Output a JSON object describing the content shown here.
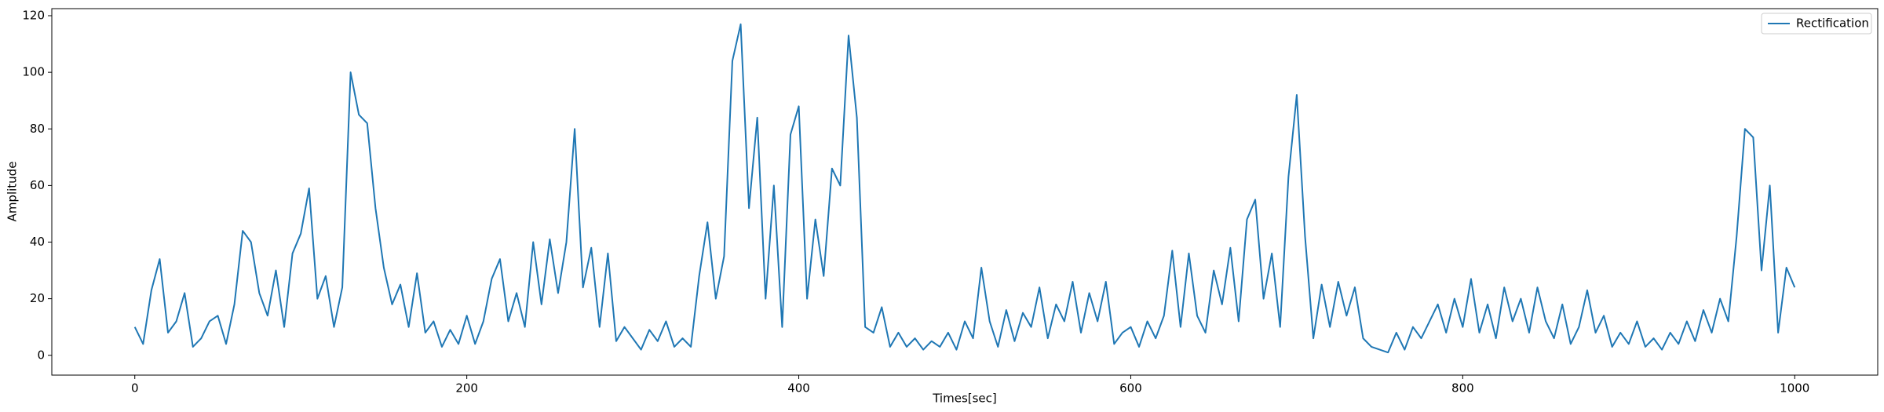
{
  "chart_data": {
    "type": "line",
    "xlabel": "Times[sec]",
    "ylabel": "Amplitude",
    "x": [
      0,
      5,
      10,
      15,
      20,
      25,
      30,
      35,
      40,
      45,
      50,
      55,
      60,
      65,
      70,
      75,
      80,
      85,
      90,
      95,
      100,
      105,
      110,
      115,
      120,
      125,
      130,
      135,
      140,
      145,
      150,
      155,
      160,
      165,
      170,
      175,
      180,
      185,
      190,
      195,
      200,
      205,
      210,
      215,
      220,
      225,
      230,
      235,
      240,
      245,
      250,
      255,
      260,
      265,
      270,
      275,
      280,
      285,
      290,
      295,
      300,
      305,
      310,
      315,
      320,
      325,
      330,
      335,
      340,
      345,
      350,
      355,
      360,
      365,
      370,
      375,
      380,
      385,
      390,
      395,
      400,
      405,
      410,
      415,
      420,
      425,
      430,
      435,
      440,
      445,
      450,
      455,
      460,
      465,
      470,
      475,
      480,
      485,
      490,
      495,
      500,
      505,
      510,
      515,
      520,
      525,
      530,
      535,
      540,
      545,
      550,
      555,
      560,
      565,
      570,
      575,
      580,
      585,
      590,
      595,
      600,
      605,
      610,
      615,
      620,
      625,
      630,
      635,
      640,
      645,
      650,
      655,
      660,
      665,
      670,
      675,
      680,
      685,
      690,
      695,
      700,
      705,
      710,
      715,
      720,
      725,
      730,
      735,
      740,
      745,
      750,
      755,
      760,
      765,
      770,
      775,
      780,
      785,
      790,
      795,
      800,
      805,
      810,
      815,
      820,
      825,
      830,
      835,
      840,
      845,
      850,
      855,
      860,
      865,
      870,
      875,
      880,
      885,
      890,
      895,
      900,
      905,
      910,
      915,
      920,
      925,
      930,
      935,
      940,
      945,
      950,
      955,
      960,
      965,
      970,
      975,
      980,
      985,
      990,
      995,
      1000
    ],
    "series": [
      {
        "name": "Rectification",
        "color": "#1f77b4",
        "values": [
          10,
          4,
          23,
          34,
          8,
          12,
          22,
          3,
          6,
          12,
          14,
          4,
          18,
          44,
          40,
          22,
          14,
          30,
          10,
          36,
          43,
          59,
          20,
          28,
          10,
          24,
          100,
          85,
          82,
          52,
          31,
          18,
          25,
          10,
          29,
          8,
          12,
          3,
          9,
          4,
          14,
          4,
          12,
          27,
          34,
          12,
          22,
          10,
          40,
          18,
          41,
          22,
          40,
          80,
          24,
          38,
          10,
          36,
          5,
          10,
          6,
          2,
          9,
          5,
          12,
          3,
          6,
          3,
          28,
          47,
          20,
          35,
          104,
          117,
          52,
          84,
          20,
          60,
          10,
          78,
          88,
          20,
          48,
          28,
          66,
          60,
          113,
          84,
          10,
          8,
          17,
          3,
          8,
          3,
          6,
          2,
          5,
          3,
          8,
          2,
          12,
          6,
          31,
          12,
          3,
          16,
          5,
          15,
          10,
          24,
          6,
          18,
          12,
          26,
          8,
          22,
          12,
          26,
          4,
          8,
          10,
          3,
          12,
          6,
          14,
          37,
          10,
          36,
          14,
          8,
          30,
          18,
          38,
          12,
          48,
          55,
          20,
          36,
          10,
          63,
          92,
          42,
          6,
          25,
          10,
          26,
          14,
          24,
          6,
          3,
          2,
          1,
          8,
          2,
          10,
          6,
          12,
          18,
          8,
          20,
          10,
          27,
          8,
          18,
          6,
          24,
          12,
          20,
          8,
          24,
          12,
          6,
          18,
          4,
          10,
          23,
          8,
          14,
          3,
          8,
          4,
          12,
          3,
          6,
          2,
          8,
          4,
          12,
          5,
          16,
          8,
          20,
          12,
          42,
          80,
          77,
          30,
          60,
          8,
          31,
          24
        ]
      }
    ],
    "xlim": [
      -50,
      1050
    ],
    "ylim": [
      -7,
      122.5
    ],
    "xticks": [
      0,
      200,
      400,
      600,
      800,
      1000
    ],
    "yticks": [
      0,
      20,
      40,
      60,
      80,
      100,
      120
    ],
    "legend": "upper right"
  }
}
